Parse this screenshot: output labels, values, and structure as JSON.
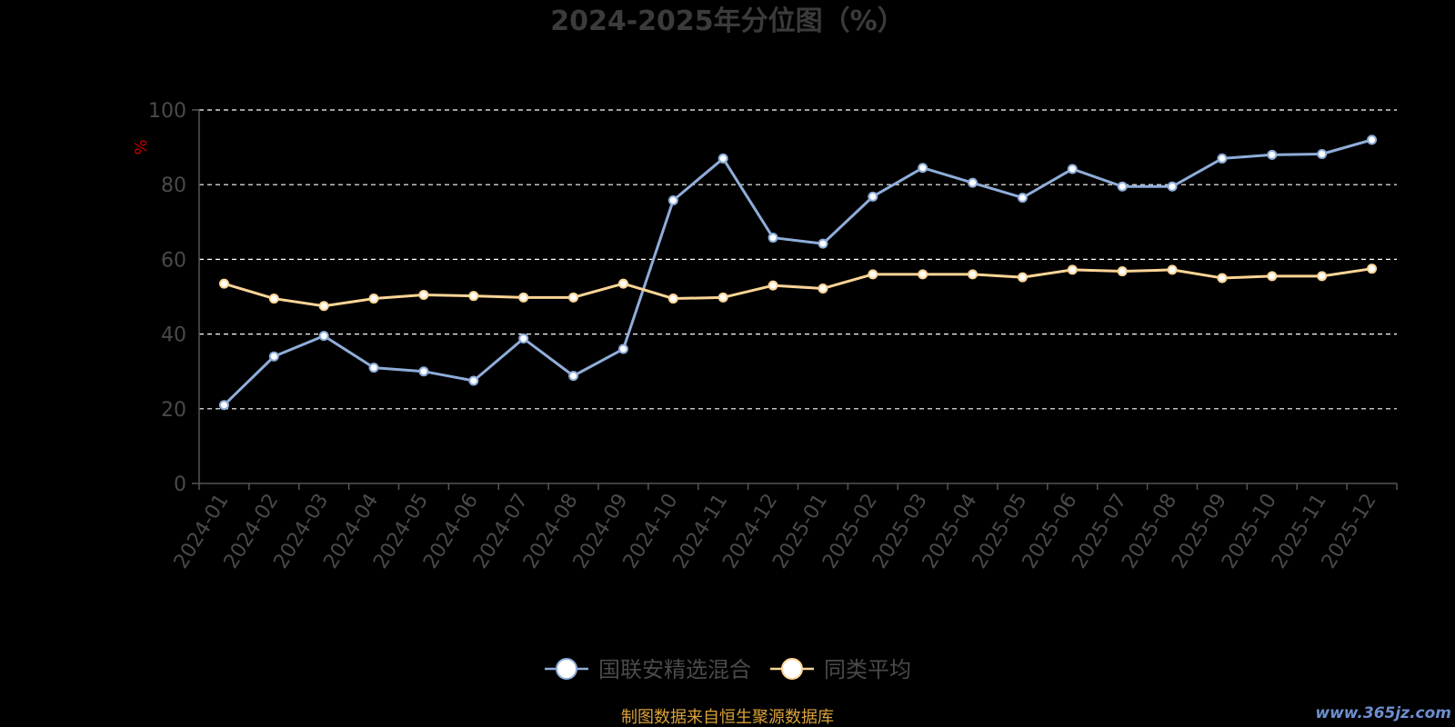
{
  "chart_data": {
    "type": "line",
    "title": "2024-2025年分位图（%）",
    "ylabel": "%",
    "xlabel": "",
    "ylim": [
      0,
      100
    ],
    "yticks": [
      0,
      20,
      40,
      60,
      80,
      100
    ],
    "grid": true,
    "legend_position": "bottom",
    "categories": [
      "2024-01",
      "2024-02",
      "2024-03",
      "2024-04",
      "2024-05",
      "2024-06",
      "2024-07",
      "2024-08",
      "2024-09",
      "2024-10",
      "2024-11",
      "2024-12",
      "2025-01",
      "2025-02",
      "2025-03",
      "2025-04",
      "2025-05",
      "2025-06",
      "2025-07",
      "2025-08",
      "2025-09",
      "2025-10",
      "2025-11",
      "2025-12"
    ],
    "series": [
      {
        "name": "国联安精选混合",
        "color": "#8fadd9",
        "values": [
          21,
          34,
          39.5,
          31,
          30,
          27.5,
          38.8,
          28.8,
          36,
          75.8,
          87,
          65.8,
          64.2,
          76.8,
          84.5,
          80.5,
          76.5,
          84.2,
          79.5,
          79.5,
          87,
          88,
          88.2,
          92
        ]
      },
      {
        "name": "同类平均",
        "color": "#fcd596",
        "values": [
          53.5,
          49.5,
          47.5,
          49.5,
          50.5,
          50.2,
          49.8,
          49.8,
          53.5,
          49.5,
          49.8,
          53,
          52.2,
          56,
          56,
          56,
          55.2,
          57.2,
          56.8,
          57.2,
          55,
          55.5,
          55.5,
          57.5
        ]
      }
    ]
  },
  "footer": {
    "source": "制图数据来自恒生聚源数据库",
    "watermark": "www.365jz.com"
  }
}
